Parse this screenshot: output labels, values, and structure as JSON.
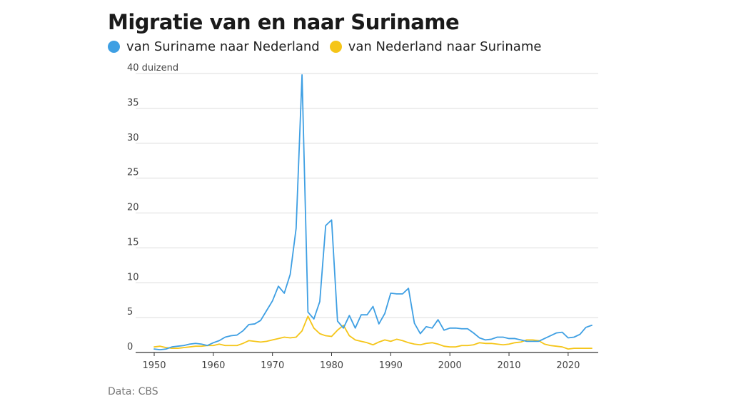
{
  "chart_data": {
    "type": "line",
    "title": "Migratie van en naar Suriname",
    "ylabel_unit": "duizend",
    "ylim": [
      0,
      40
    ],
    "xlim": [
      1950,
      2024
    ],
    "yticks": [
      0,
      5,
      10,
      15,
      20,
      25,
      30,
      35,
      40
    ],
    "xticks": [
      1950,
      1960,
      1970,
      1980,
      1990,
      2000,
      2010,
      2020
    ],
    "x": [
      1950,
      1951,
      1952,
      1953,
      1954,
      1955,
      1956,
      1957,
      1958,
      1959,
      1960,
      1961,
      1962,
      1963,
      1964,
      1965,
      1966,
      1967,
      1968,
      1969,
      1970,
      1971,
      1972,
      1973,
      1974,
      1975,
      1976,
      1977,
      1978,
      1979,
      1980,
      1981,
      1982,
      1983,
      1984,
      1985,
      1986,
      1987,
      1988,
      1989,
      1990,
      1991,
      1992,
      1993,
      1994,
      1995,
      1996,
      1997,
      1998,
      1999,
      2000,
      2001,
      2002,
      2003,
      2004,
      2005,
      2006,
      2007,
      2008,
      2009,
      2010,
      2011,
      2012,
      2013,
      2014,
      2015,
      2016,
      2017,
      2018,
      2019,
      2020,
      2021,
      2022,
      2023,
      2024
    ],
    "series": [
      {
        "name": "van Suriname naar Nederland",
        "color": "#3e9fe3",
        "values": [
          0.5,
          0.4,
          0.5,
          0.8,
          0.9,
          1.0,
          1.2,
          1.3,
          1.2,
          1.0,
          1.4,
          1.7,
          2.2,
          2.4,
          2.5,
          3.1,
          4.0,
          4.1,
          4.6,
          6.0,
          7.4,
          9.5,
          8.5,
          11.2,
          17.8,
          39.8,
          5.8,
          4.8,
          7.3,
          18.2,
          19.0,
          4.5,
          3.5,
          5.3,
          3.5,
          5.4,
          5.4,
          6.6,
          4.1,
          5.6,
          8.5,
          8.4,
          8.4,
          9.2,
          4.2,
          2.7,
          3.7,
          3.5,
          4.7,
          3.2,
          3.5,
          3.5,
          3.4,
          3.4,
          2.8,
          2.1,
          1.8,
          1.9,
          2.2,
          2.2,
          2.0,
          2.0,
          1.8,
          1.6,
          1.6,
          1.6,
          2.0,
          2.4,
          2.8,
          2.9,
          2.1,
          2.2,
          2.6,
          3.6,
          3.9
        ]
      },
      {
        "name": "van Nederland naar Suriname",
        "color": "#f5c518",
        "values": [
          0.8,
          0.9,
          0.7,
          0.6,
          0.6,
          0.7,
          0.8,
          0.9,
          0.9,
          1.0,
          1.0,
          1.2,
          1.0,
          1.0,
          1.0,
          1.3,
          1.7,
          1.6,
          1.5,
          1.6,
          1.8,
          2.0,
          2.2,
          2.1,
          2.2,
          3.1,
          5.2,
          3.5,
          2.7,
          2.4,
          2.3,
          3.2,
          3.9,
          2.4,
          1.8,
          1.6,
          1.4,
          1.1,
          1.5,
          1.8,
          1.6,
          1.9,
          1.7,
          1.4,
          1.2,
          1.1,
          1.3,
          1.4,
          1.2,
          0.9,
          0.8,
          0.8,
          1.0,
          1.0,
          1.1,
          1.4,
          1.3,
          1.3,
          1.2,
          1.1,
          1.2,
          1.4,
          1.5,
          1.8,
          1.8,
          1.7,
          1.2,
          1.0,
          0.9,
          0.8,
          0.5,
          0.6,
          0.6,
          0.6,
          0.6
        ]
      }
    ],
    "source": "Data: CBS"
  }
}
